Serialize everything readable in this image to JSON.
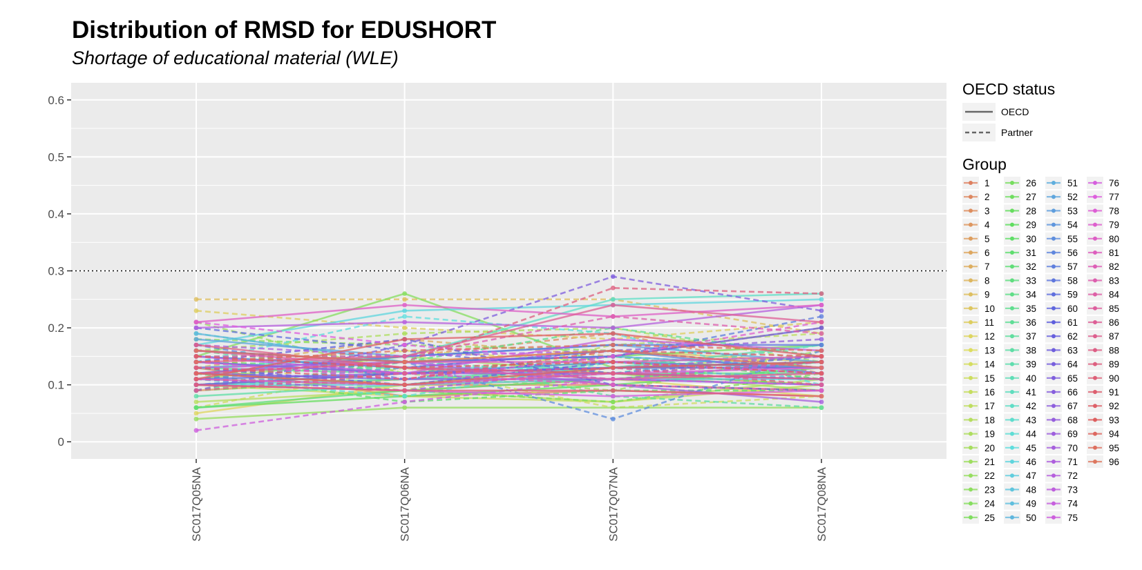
{
  "title": "Distribution of RMSD for EDUSHORT",
  "subtitle": "Shortage of educational material (WLE)",
  "chart_data": {
    "type": "line",
    "title": "Distribution of RMSD for EDUSHORT",
    "subtitle": "Shortage of educational material (WLE)",
    "xlabel": "",
    "ylabel": "",
    "categories": [
      "SC017Q05NA",
      "SC017Q06NA",
      "SC017Q07NA",
      "SC017Q08NA"
    ],
    "y_ticks": [
      "0",
      "0.1",
      "0.2",
      "0.3",
      "0.4",
      "0.5",
      "0.6"
    ],
    "ylim": [
      -0.03,
      0.63
    ],
    "reference_line": {
      "y": 0.3,
      "style": "dotted"
    },
    "grid": true,
    "panel_background": "#EBEBEB",
    "legend_placement": "right",
    "linetype_legend": {
      "title": "OECD status",
      "entries": [
        "OECD",
        "Partner"
      ]
    },
    "color_legend": {
      "title": "Group"
    },
    "series": [
      {
        "name": "1",
        "status": "OECD",
        "values": [
          0.13,
          0.08,
          0.09,
          0.08
        ]
      },
      {
        "name": "2",
        "status": "OECD",
        "values": [
          0.12,
          0.1,
          0.1,
          0.09
        ]
      },
      {
        "name": "3",
        "status": "Partner",
        "values": [
          0.11,
          0.15,
          0.19,
          0.12
        ]
      },
      {
        "name": "4",
        "status": "OECD",
        "values": [
          0.09,
          0.11,
          0.12,
          0.1
        ]
      },
      {
        "name": "5",
        "status": "Partner",
        "values": [
          0.14,
          0.12,
          0.15,
          0.2
        ]
      },
      {
        "name": "6",
        "status": "OECD",
        "values": [
          0.1,
          0.09,
          0.11,
          0.12
        ]
      },
      {
        "name": "7",
        "status": "Partner",
        "values": [
          0.13,
          0.18,
          0.15,
          0.11
        ]
      },
      {
        "name": "8",
        "status": "OECD",
        "values": [
          0.15,
          0.13,
          0.1,
          0.09
        ]
      },
      {
        "name": "9",
        "status": "Partner",
        "values": [
          0.25,
          0.25,
          0.25,
          0.19
        ]
      },
      {
        "name": "10",
        "status": "OECD",
        "values": [
          0.12,
          0.14,
          0.16,
          0.14
        ]
      },
      {
        "name": "11",
        "status": "Partner",
        "values": [
          0.23,
          0.2,
          0.18,
          0.21
        ]
      },
      {
        "name": "12",
        "status": "OECD",
        "values": [
          0.05,
          0.1,
          0.11,
          0.08
        ]
      },
      {
        "name": "13",
        "status": "Partner",
        "values": [
          0.09,
          0.16,
          0.14,
          0.12
        ]
      },
      {
        "name": "14",
        "status": "OECD",
        "values": [
          0.14,
          0.12,
          0.13,
          0.15
        ]
      },
      {
        "name": "15",
        "status": "Partner",
        "values": [
          0.06,
          0.13,
          0.06,
          0.08
        ]
      },
      {
        "name": "16",
        "status": "OECD",
        "values": [
          0.1,
          0.08,
          0.07,
          0.1
        ]
      },
      {
        "name": "17",
        "status": "Partner",
        "values": [
          0.13,
          0.09,
          0.17,
          0.19
        ]
      },
      {
        "name": "18",
        "status": "OECD",
        "values": [
          0.07,
          0.09,
          0.07,
          0.11
        ]
      },
      {
        "name": "19",
        "status": "Partner",
        "values": [
          0.16,
          0.19,
          0.2,
          0.14
        ]
      },
      {
        "name": "20",
        "status": "OECD",
        "values": [
          0.11,
          0.15,
          0.12,
          0.09
        ]
      },
      {
        "name": "21",
        "status": "Partner",
        "values": [
          0.21,
          0.12,
          0.09,
          0.16
        ]
      },
      {
        "name": "22",
        "status": "OECD",
        "values": [
          0.04,
          0.06,
          0.06,
          0.06
        ]
      },
      {
        "name": "23",
        "status": "Partner",
        "values": [
          0.18,
          0.17,
          0.16,
          0.13
        ]
      },
      {
        "name": "24",
        "status": "OECD",
        "values": [
          0.15,
          0.26,
          0.13,
          0.13
        ]
      },
      {
        "name": "25",
        "status": "Partner",
        "values": [
          0.1,
          0.09,
          0.07,
          0.12
        ]
      },
      {
        "name": "26",
        "status": "OECD",
        "values": [
          0.12,
          0.14,
          0.15,
          0.17
        ]
      },
      {
        "name": "27",
        "status": "Partner",
        "values": [
          0.09,
          0.11,
          0.12,
          0.1
        ]
      },
      {
        "name": "28",
        "status": "OECD",
        "values": [
          0.06,
          0.08,
          0.1,
          0.13
        ]
      },
      {
        "name": "29",
        "status": "Partner",
        "values": [
          0.14,
          0.13,
          0.11,
          0.14
        ]
      },
      {
        "name": "30",
        "status": "OECD",
        "values": [
          0.1,
          0.12,
          0.14,
          0.13
        ]
      },
      {
        "name": "31",
        "status": "Partner",
        "values": [
          0.12,
          0.07,
          0.09,
          0.09
        ]
      },
      {
        "name": "32",
        "status": "OECD",
        "values": [
          0.06,
          0.09,
          0.11,
          0.14
        ]
      },
      {
        "name": "33",
        "status": "Partner",
        "values": [
          0.16,
          0.12,
          0.15,
          0.11
        ]
      },
      {
        "name": "34",
        "status": "OECD",
        "values": [
          0.11,
          0.1,
          0.12,
          0.12
        ]
      },
      {
        "name": "35",
        "status": "Partner",
        "values": [
          0.09,
          0.14,
          0.2,
          0.15
        ]
      },
      {
        "name": "36",
        "status": "OECD",
        "values": [
          0.13,
          0.12,
          0.13,
          0.14
        ]
      },
      {
        "name": "37",
        "status": "Partner",
        "values": [
          0.15,
          0.15,
          0.08,
          0.06
        ]
      },
      {
        "name": "38",
        "status": "OECD",
        "values": [
          0.08,
          0.1,
          0.14,
          0.12
        ]
      },
      {
        "name": "39",
        "status": "Partner",
        "values": [
          0.12,
          0.13,
          0.16,
          0.13
        ]
      },
      {
        "name": "40",
        "status": "OECD",
        "values": [
          0.1,
          0.11,
          0.13,
          0.17
        ]
      },
      {
        "name": "41",
        "status": "Partner",
        "values": [
          0.19,
          0.14,
          0.12,
          0.17
        ]
      },
      {
        "name": "42",
        "status": "OECD",
        "values": [
          0.13,
          0.15,
          0.25,
          0.26
        ]
      },
      {
        "name": "43",
        "status": "Partner",
        "values": [
          0.11,
          0.08,
          0.14,
          0.15
        ]
      },
      {
        "name": "44",
        "status": "OECD",
        "values": [
          0.15,
          0.13,
          0.13,
          0.14
        ]
      },
      {
        "name": "45",
        "status": "Partner",
        "values": [
          0.14,
          0.22,
          0.19,
          0.1
        ]
      },
      {
        "name": "46",
        "status": "OECD",
        "values": [
          0.17,
          0.23,
          0.24,
          0.25
        ]
      },
      {
        "name": "47",
        "status": "Partner",
        "values": [
          0.12,
          0.11,
          0.12,
          0.14
        ]
      },
      {
        "name": "48",
        "status": "OECD",
        "values": [
          0.1,
          0.1,
          0.11,
          0.11
        ]
      },
      {
        "name": "49",
        "status": "Partner",
        "values": [
          0.16,
          0.14,
          0.15,
          0.13
        ]
      },
      {
        "name": "50",
        "status": "OECD",
        "values": [
          0.19,
          0.14,
          0.15,
          0.13
        ]
      },
      {
        "name": "51",
        "status": "Partner",
        "values": [
          0.15,
          0.12,
          0.13,
          0.11
        ]
      },
      {
        "name": "52",
        "status": "OECD",
        "values": [
          0.18,
          0.15,
          0.17,
          0.14
        ]
      },
      {
        "name": "53",
        "status": "Partner",
        "values": [
          0.1,
          0.13,
          0.12,
          0.11
        ]
      },
      {
        "name": "54",
        "status": "OECD",
        "values": [
          0.14,
          0.12,
          0.14,
          0.13
        ]
      },
      {
        "name": "55",
        "status": "Partner",
        "values": [
          0.11,
          0.14,
          0.04,
          0.16
        ]
      },
      {
        "name": "56",
        "status": "OECD",
        "values": [
          0.15,
          0.13,
          0.16,
          0.12
        ]
      },
      {
        "name": "57",
        "status": "Partner",
        "values": [
          0.17,
          0.11,
          0.15,
          0.22
        ]
      },
      {
        "name": "58",
        "status": "OECD",
        "values": [
          0.12,
          0.15,
          0.17,
          0.17
        ]
      },
      {
        "name": "59",
        "status": "Partner",
        "values": [
          0.2,
          0.16,
          0.12,
          0.15
        ]
      },
      {
        "name": "60",
        "status": "OECD",
        "values": [
          0.11,
          0.12,
          0.13,
          0.14
        ]
      },
      {
        "name": "61",
        "status": "Partner",
        "values": [
          0.14,
          0.18,
          0.1,
          0.09
        ]
      },
      {
        "name": "62",
        "status": "OECD",
        "values": [
          0.16,
          0.14,
          0.15,
          0.2
        ]
      },
      {
        "name": "63",
        "status": "Partner",
        "values": [
          0.13,
          0.1,
          0.14,
          0.12
        ]
      },
      {
        "name": "64",
        "status": "OECD",
        "values": [
          0.1,
          0.12,
          0.13,
          0.13
        ]
      },
      {
        "name": "65",
        "status": "Partner",
        "values": [
          0.09,
          0.17,
          0.29,
          0.23
        ]
      },
      {
        "name": "66",
        "status": "OECD",
        "values": [
          0.12,
          0.11,
          0.11,
          0.1
        ]
      },
      {
        "name": "67",
        "status": "Partner",
        "values": [
          0.15,
          0.13,
          0.16,
          0.18
        ]
      },
      {
        "name": "68",
        "status": "OECD",
        "values": [
          0.14,
          0.12,
          0.12,
          0.11
        ]
      },
      {
        "name": "69",
        "status": "Partner",
        "values": [
          0.11,
          0.09,
          0.13,
          0.15
        ]
      },
      {
        "name": "70",
        "status": "OECD",
        "values": [
          0.13,
          0.14,
          0.1,
          0.07
        ]
      },
      {
        "name": "71",
        "status": "Partner",
        "values": [
          0.17,
          0.15,
          0.16,
          0.13
        ]
      },
      {
        "name": "72",
        "status": "OECD",
        "values": [
          0.2,
          0.21,
          0.2,
          0.24
        ]
      },
      {
        "name": "73",
        "status": "Partner",
        "values": [
          0.12,
          0.14,
          0.11,
          0.14
        ]
      },
      {
        "name": "74",
        "status": "OECD",
        "values": [
          0.15,
          0.12,
          0.18,
          0.16
        ]
      },
      {
        "name": "75",
        "status": "Partner",
        "values": [
          0.02,
          0.07,
          0.11,
          0.1
        ]
      },
      {
        "name": "76",
        "status": "OECD",
        "values": [
          0.1,
          0.09,
          0.08,
          0.09
        ]
      },
      {
        "name": "77",
        "status": "Partner",
        "values": [
          0.21,
          0.17,
          0.14,
          0.12
        ]
      },
      {
        "name": "78",
        "status": "OECD",
        "values": [
          0.11,
          0.1,
          0.12,
          0.13
        ]
      },
      {
        "name": "79",
        "status": "Partner",
        "values": [
          0.14,
          0.11,
          0.15,
          0.21
        ]
      },
      {
        "name": "80",
        "status": "OECD",
        "values": [
          0.21,
          0.24,
          0.22,
          0.24
        ]
      },
      {
        "name": "81",
        "status": "Partner",
        "values": [
          0.13,
          0.12,
          0.1,
          0.09
        ]
      },
      {
        "name": "82",
        "status": "OECD",
        "values": [
          0.12,
          0.14,
          0.14,
          0.15
        ]
      },
      {
        "name": "83",
        "status": "Partner",
        "values": [
          0.15,
          0.15,
          0.22,
          0.19
        ]
      },
      {
        "name": "84",
        "status": "OECD",
        "values": [
          0.16,
          0.13,
          0.11,
          0.12
        ]
      },
      {
        "name": "85",
        "status": "Partner",
        "values": [
          0.11,
          0.1,
          0.12,
          0.14
        ]
      },
      {
        "name": "86",
        "status": "OECD",
        "values": [
          0.14,
          0.15,
          0.24,
          0.21
        ]
      },
      {
        "name": "87",
        "status": "Partner",
        "values": [
          0.09,
          0.12,
          0.13,
          0.1
        ]
      },
      {
        "name": "88",
        "status": "OECD",
        "values": [
          0.17,
          0.13,
          0.12,
          0.11
        ]
      },
      {
        "name": "89",
        "status": "Partner",
        "values": [
          0.12,
          0.14,
          0.27,
          0.26
        ]
      },
      {
        "name": "90",
        "status": "OECD",
        "values": [
          0.1,
          0.09,
          0.09,
          0.08
        ]
      },
      {
        "name": "91",
        "status": "Partner",
        "values": [
          0.13,
          0.11,
          0.16,
          0.15
        ]
      },
      {
        "name": "92",
        "status": "OECD",
        "values": [
          0.11,
          0.18,
          0.19,
          0.15
        ]
      },
      {
        "name": "93",
        "status": "Partner",
        "values": [
          0.15,
          0.13,
          0.14,
          0.12
        ]
      },
      {
        "name": "94",
        "status": "OECD",
        "values": [
          0.12,
          0.1,
          0.13,
          0.14
        ]
      },
      {
        "name": "95",
        "status": "Partner",
        "values": [
          0.14,
          0.16,
          0.17,
          0.16
        ]
      },
      {
        "name": "96",
        "status": "OECD",
        "values": [
          0.16,
          0.14,
          0.16,
          0.13
        ]
      }
    ]
  }
}
